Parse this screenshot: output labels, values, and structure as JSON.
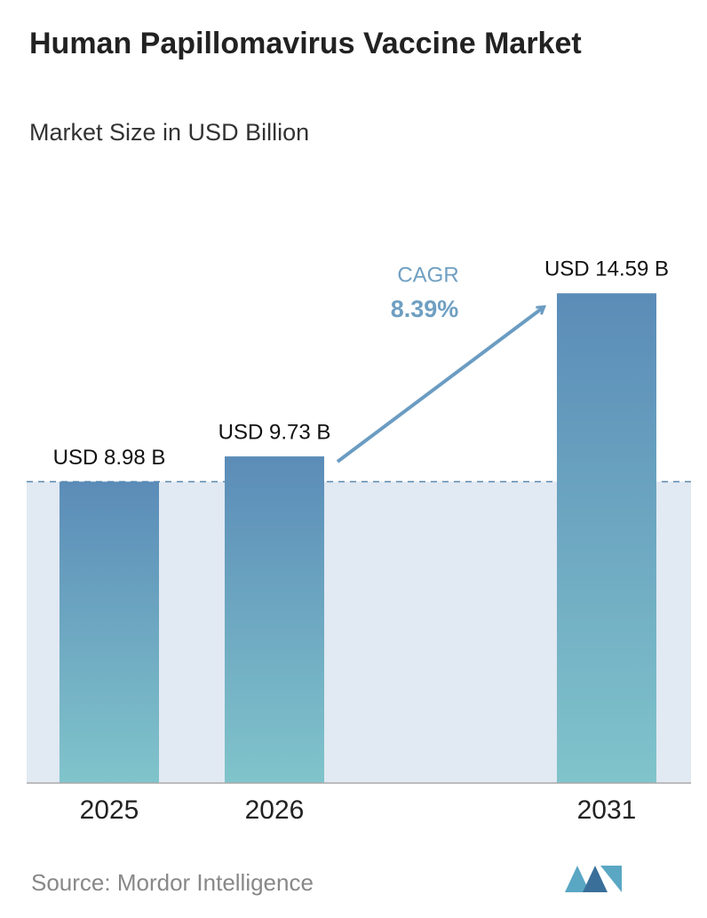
{
  "chart_data": {
    "type": "bar",
    "title": "Human Papillomavirus Vaccine Market",
    "subtitle": "Market Size in USD Billion",
    "categories": [
      "2025",
      "2026",
      "2031"
    ],
    "values": [
      8.98,
      9.73,
      14.59
    ],
    "value_labels": [
      "USD 8.98 B",
      "USD 9.73 B",
      "USD 14.59 B"
    ],
    "ylim": [
      0,
      16
    ],
    "annotation": {
      "label": "CAGR",
      "value": "8.39%"
    },
    "source": "Source: Mordor Intelligence"
  }
}
